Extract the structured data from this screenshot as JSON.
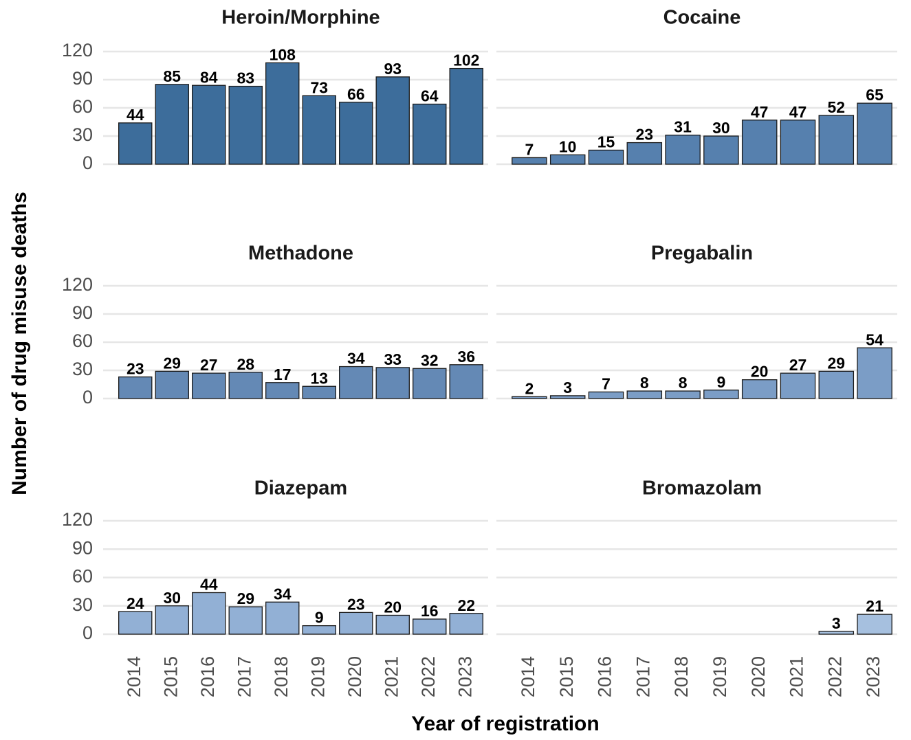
{
  "xlabel": "Year of registration",
  "ylabel": "Number of drug misuse deaths",
  "categories": [
    "2014",
    "2015",
    "2016",
    "2017",
    "2018",
    "2019",
    "2020",
    "2021",
    "2022",
    "2023"
  ],
  "ylim": [
    0,
    120
  ],
  "yticks": [
    0,
    30,
    60,
    90,
    120
  ],
  "grid": true,
  "chart_data": [
    {
      "type": "bar",
      "title": "Heroin/Morphine",
      "color": "#3d6d9b",
      "values": [
        44,
        85,
        84,
        83,
        108,
        73,
        66,
        93,
        64,
        102
      ]
    },
    {
      "type": "bar",
      "title": "Cocaine",
      "color": "#5680ae",
      "values": [
        7,
        10,
        15,
        23,
        31,
        30,
        47,
        47,
        52,
        65
      ]
    },
    {
      "type": "bar",
      "title": "Methadone",
      "color": "#6489b5",
      "values": [
        23,
        29,
        27,
        28,
        17,
        13,
        34,
        33,
        32,
        36
      ]
    },
    {
      "type": "bar",
      "title": "Pregabalin",
      "color": "#7b9dc6",
      "values": [
        2,
        3,
        7,
        8,
        8,
        9,
        20,
        27,
        29,
        54
      ]
    },
    {
      "type": "bar",
      "title": "Diazepam",
      "color": "#92b0d5",
      "values": [
        24,
        30,
        44,
        29,
        34,
        9,
        23,
        20,
        16,
        22
      ]
    },
    {
      "type": "bar",
      "title": "Bromazolam",
      "color": "#a6c0df",
      "values": [
        null,
        null,
        null,
        null,
        null,
        null,
        null,
        null,
        3,
        21
      ]
    }
  ]
}
